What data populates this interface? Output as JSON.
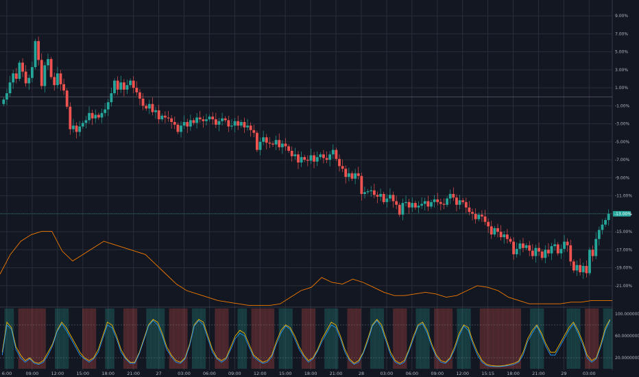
{
  "chart_data": [
    {
      "type": "candlestick",
      "y_unit": "%",
      "ylim": [
        -22,
        10
      ],
      "y_ticks": [
        "9.00%",
        "7.00%",
        "5.00%",
        "3.00%",
        "1.00%",
        "-1.00%",
        "-3.00%",
        "-5.00%",
        "-7.00%",
        "-9.00%",
        "-11.00%",
        "-13.00%",
        "-15.00%",
        "-17.00%",
        "-19.00%",
        "-21.00%"
      ],
      "last_value_label": "-13.00%",
      "grid": true,
      "colors": {
        "up": "#26a69a",
        "down": "#ef5350",
        "background": "#131722",
        "grid": "#2a2e39",
        "line": "#f57c00",
        "axis_text": "#b2b5be",
        "last_value": "#26a69a"
      },
      "close": [
        -0.3,
        0.4,
        1.6,
        2.6,
        2.0,
        3.8,
        2.8,
        1.5,
        2.1,
        3.3,
        6.2,
        4.1,
        1.2,
        3.5,
        4.2,
        2.2,
        1.3,
        2.6,
        1.4,
        0.7,
        -1.1,
        -3.6,
        -3.2,
        -3.9,
        -3.3,
        -2.9,
        -2.6,
        -1.8,
        -2.4,
        -2.0,
        -2.3,
        -1.8,
        -1.4,
        -0.6,
        0.4,
        1.8,
        0.8,
        1.6,
        0.8,
        1.3,
        1.8,
        1.0,
        0.5,
        -0.2,
        -1.0,
        -1.3,
        -0.8,
        -1.7,
        -1.5,
        -2.5,
        -2.1,
        -2.3,
        -2.4,
        -2.8,
        -3.1,
        -3.9,
        -3.2,
        -2.8,
        -3.3,
        -2.6,
        -2.9,
        -2.3,
        -2.5,
        -2.7,
        -2.5,
        -2.2,
        -2.5,
        -3.1,
        -2.7,
        -2.4,
        -2.6,
        -3.3,
        -3.2,
        -2.7,
        -3.2,
        -2.8,
        -3.4,
        -3.2,
        -3.7,
        -4.0,
        -5.9,
        -5.0,
        -4.5,
        -5.1,
        -5.2,
        -5.3,
        -4.8,
        -5.6,
        -5.2,
        -5.5,
        -6.0,
        -6.6,
        -6.4,
        -7.3,
        -6.7,
        -7.0,
        -7.1,
        -6.5,
        -7.2,
        -6.7,
        -6.4,
        -6.8,
        -7.0,
        -6.4,
        -5.9,
        -6.9,
        -7.7,
        -8.0,
        -8.9,
        -8.5,
        -9.1,
        -8.5,
        -8.8,
        -10.8,
        -10.6,
        -10.5,
        -10.4,
        -10.9,
        -11.1,
        -10.8,
        -11.7,
        -11.3,
        -10.9,
        -11.6,
        -12.0,
        -13.1,
        -11.8,
        -11.7,
        -12.3,
        -11.8,
        -12.3,
        -12.1,
        -11.9,
        -11.6,
        -12.2,
        -11.7,
        -11.4,
        -11.7,
        -11.9,
        -12.0,
        -11.3,
        -10.8,
        -11.2,
        -12.0,
        -11.5,
        -11.7,
        -12.3,
        -12.8,
        -13.0,
        -13.6,
        -13.1,
        -13.3,
        -13.9,
        -14.4,
        -15.3,
        -14.6,
        -15.0,
        -15.6,
        -15.3,
        -15.8,
        -16.1,
        -17.5,
        -16.9,
        -16.3,
        -16.8,
        -16.5,
        -17.1,
        -17.7,
        -16.8,
        -17.2,
        -17.9,
        -17.0,
        -17.4,
        -16.6,
        -16.4,
        -17.4,
        -16.9,
        -16.1,
        -16.5,
        -18.3,
        -19.3,
        -18.7,
        -19.5,
        -18.8,
        -19.6,
        -17.0,
        -17.7,
        -15.8,
        -14.8,
        -14.2,
        -13.7,
        -13.0
      ]
    },
    {
      "type": "line",
      "series_color": "#f57c00",
      "values": [
        1.0,
        1.6,
        2.0,
        2.2,
        2.3,
        2.3,
        1.7,
        1.4,
        1.6,
        1.8,
        2.0,
        1.9,
        1.8,
        1.7,
        1.6,
        1.3,
        1.0,
        0.7,
        0.5,
        0.4,
        0.3,
        0.2,
        0.15,
        0.1,
        0.05,
        0.05,
        0.05,
        0.1,
        0.3,
        0.5,
        0.6,
        0.9,
        0.75,
        0.7,
        0.85,
        0.75,
        0.6,
        0.45,
        0.35,
        0.35,
        0.4,
        0.45,
        0.4,
        0.3,
        0.35,
        0.5,
        0.65,
        0.6,
        0.5,
        0.3,
        0.2,
        0.1,
        0.1,
        0.1,
        0.1,
        0.15,
        0.15,
        0.2,
        0.2,
        0.2
      ]
    },
    {
      "type": "line",
      "y_ticks": [
        "100.00000000",
        "60.00000000",
        "20.00000000"
      ],
      "ylim": [
        0,
        110
      ],
      "x_ticks": [
        "6:00",
        "09:00",
        "12:00",
        "15:00",
        "18:00",
        "21:00",
        "27",
        "03:00",
        "06:00",
        "09:00",
        "12:00",
        "15:00",
        "18:00",
        "21:00",
        "28",
        "03:00",
        "06:00",
        "09:00",
        "12:00",
        "15:15",
        "18:00",
        "21:00",
        "29",
        "03:00"
      ],
      "series": [
        {
          "color": "#f5b800",
          "values": [
            30,
            85,
            75,
            40,
            25,
            15,
            20,
            12,
            10,
            15,
            30,
            45,
            70,
            85,
            75,
            60,
            45,
            30,
            20,
            15,
            20,
            35,
            60,
            85,
            80,
            60,
            35,
            20,
            12,
            12,
            30,
            55,
            80,
            90,
            85,
            65,
            40,
            25,
            15,
            12,
            20,
            45,
            80,
            90,
            85,
            60,
            35,
            20,
            15,
            20,
            40,
            60,
            70,
            65,
            45,
            25,
            18,
            12,
            15,
            25,
            50,
            70,
            80,
            75,
            60,
            40,
            25,
            15,
            20,
            35,
            55,
            70,
            85,
            80,
            60,
            35,
            18,
            10,
            15,
            30,
            55,
            80,
            90,
            80,
            55,
            30,
            15,
            10,
            15,
            35,
            60,
            80,
            85,
            70,
            45,
            25,
            15,
            12,
            20,
            40,
            65,
            80,
            75,
            50,
            30,
            15,
            8,
            6,
            5,
            5,
            6,
            8,
            10,
            14,
            30,
            55,
            70,
            80,
            65,
            45,
            30,
            30,
            45,
            60,
            75,
            85,
            70,
            50,
            25,
            15,
            20,
            45,
            75,
            90
          ]
        },
        {
          "color": "#2196f3",
          "values": [
            25,
            80,
            72,
            35,
            20,
            12,
            18,
            10,
            8,
            12,
            25,
            42,
            68,
            82,
            70,
            55,
            40,
            25,
            18,
            12,
            18,
            30,
            55,
            80,
            75,
            55,
            30,
            18,
            10,
            10,
            28,
            52,
            78,
            88,
            80,
            60,
            35,
            22,
            12,
            10,
            18,
            42,
            78,
            88,
            80,
            55,
            30,
            18,
            12,
            18,
            35,
            55,
            65,
            60,
            40,
            22,
            15,
            10,
            12,
            22,
            45,
            65,
            78,
            72,
            55,
            35,
            22,
            12,
            18,
            32,
            50,
            65,
            80,
            75,
            55,
            30,
            15,
            8,
            12,
            28,
            50,
            78,
            88,
            75,
            50,
            25,
            12,
            8,
            12,
            32,
            55,
            78,
            82,
            65,
            40,
            22,
            12,
            10,
            18,
            35,
            60,
            78,
            70,
            45,
            25,
            12,
            6,
            4,
            4,
            4,
            5,
            6,
            8,
            12,
            25,
            50,
            65,
            78,
            60,
            40,
            25,
            25,
            40,
            55,
            70,
            82,
            65,
            45,
            20,
            12,
            18,
            40,
            70,
            88
          ]
        }
      ],
      "bands": [
        80,
        20
      ],
      "background_bands_colors": [
        "#26a69a",
        "#ef5350"
      ]
    }
  ]
}
